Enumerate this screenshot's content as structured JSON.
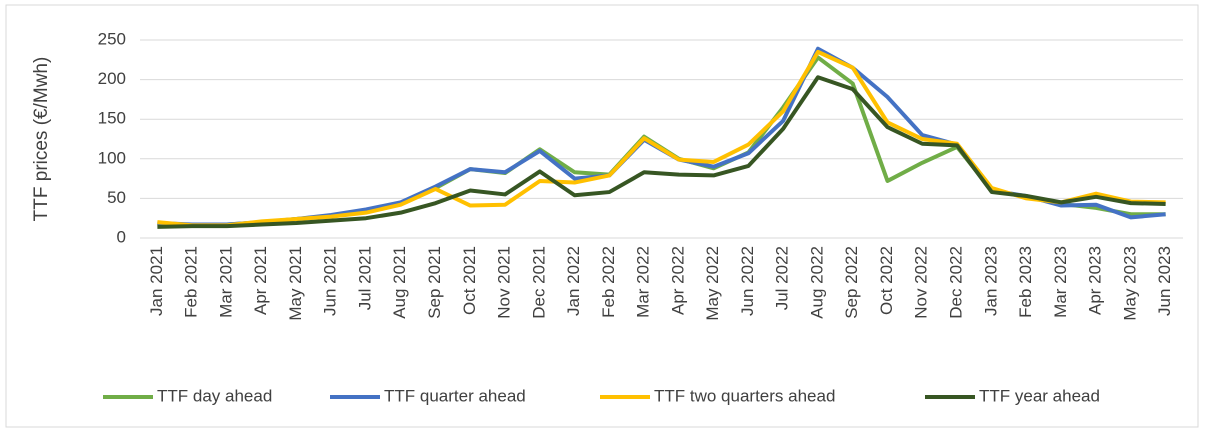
{
  "chart_data": {
    "type": "line",
    "y_label": "TTF prices (€/Mwh)",
    "categories": [
      "Jan 2021",
      "Feb 2021",
      "Mar 2021",
      "Apr 2021",
      "May 2021",
      "Jun 2021",
      "Jul 2021",
      "Aug 2021",
      "Sep 2021",
      "Oct 2021",
      "Nov 2021",
      "Dec 2021",
      "Jan 2022",
      "Feb 2022",
      "Mar 2022",
      "Apr 2022",
      "May 2022",
      "Jun 2022",
      "Jul 2022",
      "Aug 2022",
      "Sep 2022",
      "Oct 2022",
      "Nov 2022",
      "Dec 2022",
      "Jan 2023",
      "Feb 2023",
      "Mar 2023",
      "Apr 2023",
      "May 2023",
      "Jun 2023"
    ],
    "series": [
      {
        "name": "TTF day ahead",
        "color": "#70ad47",
        "values": [
          19,
          16,
          17,
          20,
          24,
          28,
          35,
          43,
          63,
          87,
          82,
          112,
          83,
          80,
          128,
          100,
          88,
          108,
          165,
          228,
          195,
          72,
          95,
          115,
          60,
          52,
          43,
          38,
          30,
          30
        ]
      },
      {
        "name": "TTF quarter ahead",
        "color": "#4472c4",
        "values": [
          19,
          17,
          17,
          20,
          24,
          29,
          36,
          45,
          65,
          87,
          83,
          110,
          75,
          79,
          124,
          99,
          90,
          107,
          148,
          239,
          215,
          178,
          130,
          118,
          60,
          53,
          41,
          42,
          26,
          30
        ]
      },
      {
        "name": "TTF two quarters ahead",
        "color": "#ffc000",
        "values": [
          20,
          16,
          16,
          21,
          24,
          27,
          32,
          42,
          62,
          41,
          42,
          72,
          70,
          79,
          126,
          99,
          96,
          118,
          160,
          235,
          215,
          146,
          125,
          119,
          63,
          50,
          45,
          56,
          46,
          45
        ]
      },
      {
        "name": "TTF year ahead",
        "color": "#375623",
        "values": [
          14,
          15,
          15,
          17,
          19,
          22,
          25,
          32,
          44,
          60,
          55,
          84,
          54,
          58,
          83,
          80,
          79,
          91,
          138,
          203,
          188,
          140,
          119,
          117,
          58,
          53,
          45,
          52,
          44,
          43
        ]
      }
    ],
    "ylim": [
      0,
      250
    ],
    "yticks": [
      0,
      50,
      100,
      150,
      200,
      250
    ],
    "grid": true,
    "legend": "bottom"
  }
}
